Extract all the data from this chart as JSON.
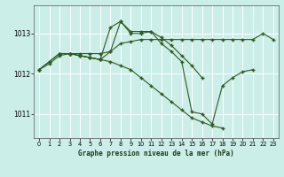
{
  "title": "Graphe pression niveau de la mer (hPa)",
  "bg_color": "#cceee8",
  "grid_color": "#ffffff",
  "line_color": "#2d5a1e",
  "xlim": [
    -0.5,
    23.5
  ],
  "ylim": [
    1010.4,
    1013.7
  ],
  "yticks": [
    1011,
    1012,
    1013
  ],
  "xticks": [
    0,
    1,
    2,
    3,
    4,
    5,
    6,
    7,
    8,
    9,
    10,
    11,
    12,
    13,
    14,
    15,
    16,
    17,
    18,
    19,
    20,
    21,
    22,
    23
  ],
  "series": [
    {
      "x": [
        0,
        1,
        2,
        3,
        4,
        5,
        6,
        7,
        8,
        9,
        10,
        11,
        12,
        13,
        14,
        15,
        16,
        17,
        18,
        19,
        20,
        21,
        22,
        23
      ],
      "y": [
        1012.1,
        1012.25,
        1012.45,
        1012.5,
        1012.5,
        1012.5,
        1012.5,
        1012.55,
        1012.75,
        1012.8,
        1012.85,
        1012.85,
        1012.85,
        1012.85,
        1012.85,
        1012.85,
        1012.85,
        1012.85,
        1012.85,
        1012.85,
        1012.85,
        1012.85,
        1013.0,
        1012.85
      ]
    },
    {
      "x": [
        0,
        1,
        2,
        3,
        4,
        5,
        6,
        7,
        8,
        9,
        10,
        11,
        12,
        13,
        14,
        15,
        16,
        17,
        18,
        19,
        20,
        21
      ],
      "y": [
        1012.1,
        1012.3,
        1012.5,
        1012.5,
        1012.45,
        1012.4,
        1012.35,
        1013.15,
        1013.3,
        1013.0,
        1013.0,
        1013.05,
        1012.75,
        1012.55,
        1012.3,
        1011.05,
        1011.0,
        1010.75,
        1011.7,
        1011.9,
        1012.05,
        1012.1
      ]
    },
    {
      "x": [
        0,
        1,
        2,
        3,
        4,
        5,
        6,
        7,
        8,
        9,
        10,
        11,
        12,
        13,
        14,
        15,
        16
      ],
      "y": [
        1012.1,
        1012.3,
        1012.5,
        1012.5,
        1012.45,
        1012.4,
        1012.35,
        1012.55,
        1013.3,
        1013.05,
        1013.05,
        1013.05,
        1012.9,
        1012.7,
        1012.45,
        1012.2,
        1011.9
      ]
    },
    {
      "x": [
        2,
        3,
        4,
        5,
        6,
        7,
        8,
        9,
        10,
        11,
        12,
        13,
        14,
        15,
        16,
        17,
        18
      ],
      "y": [
        1012.5,
        1012.5,
        1012.45,
        1012.4,
        1012.35,
        1012.3,
        1012.2,
        1012.1,
        1011.9,
        1011.7,
        1011.5,
        1011.3,
        1011.1,
        1010.9,
        1010.8,
        1010.7,
        1010.65
      ]
    }
  ]
}
